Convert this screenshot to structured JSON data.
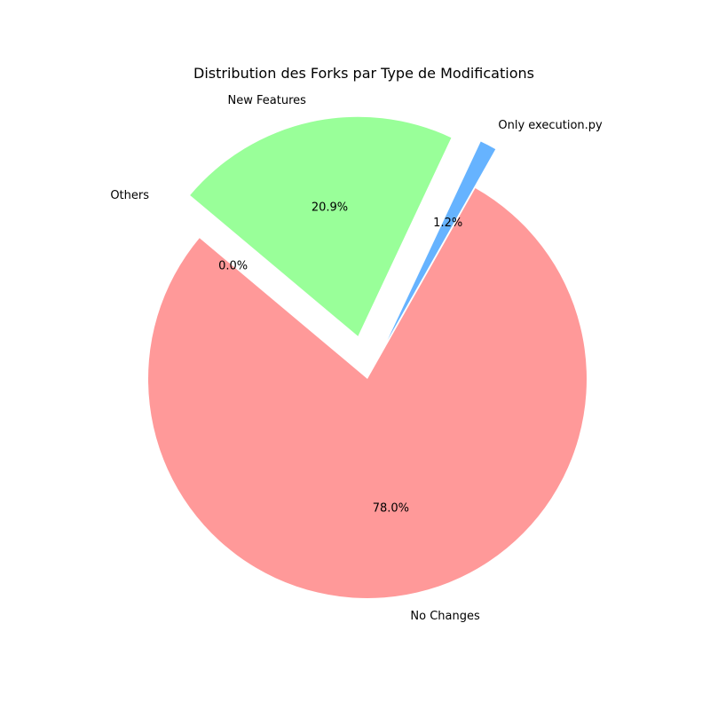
{
  "chart_data": {
    "type": "pie",
    "title": "Distribution des Forks par Type de Modifications",
    "slices": [
      {
        "label": "No Changes",
        "value": 78.0,
        "pct_text": "78.0%",
        "color": "#ff9999",
        "exploded": false
      },
      {
        "label": "Only execution.py",
        "value": 1.2,
        "pct_text": "1.2%",
        "color": "#66b3ff",
        "exploded": true
      },
      {
        "label": "New Features",
        "value": 20.9,
        "pct_text": "20.9%",
        "color": "#99ff99",
        "exploded": true
      },
      {
        "label": "Others",
        "value": 0.0,
        "pct_text": "0.0%",
        "color": "#ffcc99",
        "exploded": true
      }
    ],
    "start_angle_deg": 140,
    "direction": "counterclockwise",
    "legend": "none"
  }
}
